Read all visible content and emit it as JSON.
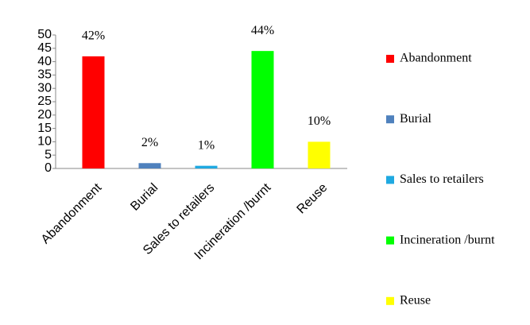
{
  "chart_data": {
    "type": "bar",
    "categories": [
      "Abandonment",
      "Burial",
      "Sales to retailers",
      "Incineration /burnt",
      "Reuse"
    ],
    "values": [
      42,
      2,
      1,
      44,
      10
    ],
    "value_labels": [
      "42%",
      "2%",
      "1%",
      "44%",
      "10%"
    ],
    "colors": [
      "#ff0000",
      "#4f81bd",
      "#1fa9e1",
      "#00ff00",
      "#ffff00"
    ],
    "ylim": [
      0,
      50
    ],
    "yticks": [
      0,
      5,
      10,
      15,
      20,
      25,
      30,
      35,
      40,
      45,
      50
    ],
    "legend": "right"
  }
}
